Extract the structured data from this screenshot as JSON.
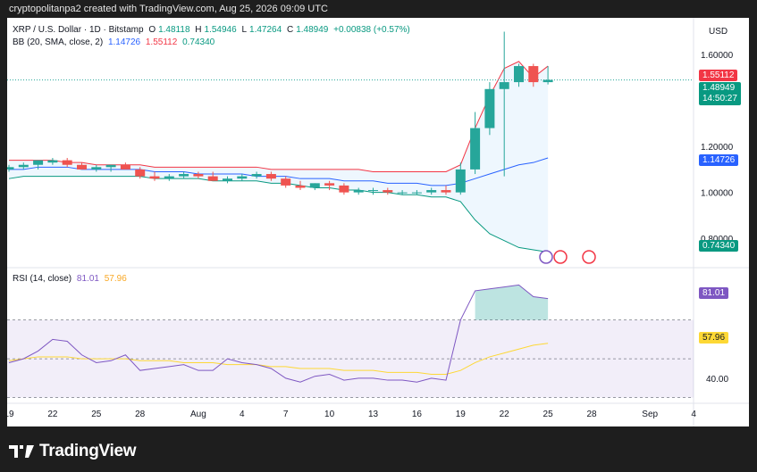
{
  "header": {
    "text": "cryptopolitanpa2 created with TradingView.com, Aug 25, 2026 09:09 UTC"
  },
  "legend": {
    "symbol": "XRP / U.S. Dollar · 1D · Bitstamp",
    "o_label": "O",
    "o_value": "1.48118",
    "h_label": "H",
    "h_value": "1.54946",
    "l_label": "L",
    "l_value": "1.47264",
    "c_label": "C",
    "c_value": "1.48949",
    "change": "+0.00838 (+0.57%)",
    "bb_label": "BB (20, SMA, close, 2)",
    "bb_basis": "1.14726",
    "bb_upper": "1.55112",
    "bb_lower": "0.74340",
    "rsi_label": "RSI (14, close)",
    "rsi_value": "81.01",
    "rsi_ma_value": "57.96"
  },
  "price_axis": {
    "currency": "USD",
    "current_price": "1.48949",
    "countdown": "14:50:27",
    "upper_band_label": "1.55112",
    "basis_label": "1.14726",
    "lower_band_label": "0.74340"
  },
  "rsi_axis": {
    "rsi_label": "81.01",
    "ma_label": "57.96"
  },
  "colors": {
    "up": "#26a69a",
    "down": "#ef5350",
    "upper_band": "#f23645",
    "basis": "#2962ff",
    "lower_band": "#089981",
    "rsi": "#7e57c2",
    "rsi_ma": "#fdd835"
  },
  "footer": {
    "brand": "TradingView"
  },
  "chart_data": [
    {
      "type": "candlestick",
      "title": "XRP / U.S. Dollar · 1D · Bitstamp",
      "x": [
        "Jul 19",
        "Jul 20",
        "Jul 21",
        "Jul 22",
        "Jul 23",
        "Jul 24",
        "Jul 25",
        "Jul 26",
        "Jul 27",
        "Jul 28",
        "Jul 29",
        "Jul 30",
        "Jul 31",
        "Aug 1",
        "Aug 2",
        "Aug 3",
        "Aug 4",
        "Aug 5",
        "Aug 6",
        "Aug 7",
        "Aug 8",
        "Aug 9",
        "Aug 10",
        "Aug 11",
        "Aug 12",
        "Aug 13",
        "Aug 14",
        "Aug 15",
        "Aug 16",
        "Aug 17",
        "Aug 18",
        "Aug 19",
        "Aug 20",
        "Aug 21",
        "Aug 22",
        "Aug 23",
        "Aug 24",
        "Aug 25"
      ],
      "open": [
        1.1,
        1.11,
        1.12,
        1.13,
        1.14,
        1.12,
        1.1,
        1.11,
        1.12,
        1.1,
        1.07,
        1.06,
        1.07,
        1.08,
        1.07,
        1.05,
        1.06,
        1.07,
        1.08,
        1.06,
        1.03,
        1.02,
        1.04,
        1.03,
        1.0,
        1.01,
        1.01,
        1.0,
        1.0,
        1.0,
        1.01,
        1.0,
        1.1,
        1.28,
        1.45,
        1.48,
        1.55,
        1.48
      ],
      "high": [
        1.12,
        1.13,
        1.14,
        1.15,
        1.15,
        1.13,
        1.12,
        1.12,
        1.13,
        1.11,
        1.09,
        1.08,
        1.09,
        1.09,
        1.09,
        1.07,
        1.08,
        1.09,
        1.09,
        1.07,
        1.05,
        1.04,
        1.05,
        1.04,
        1.02,
        1.02,
        1.02,
        1.01,
        1.01,
        1.02,
        1.03,
        1.13,
        1.35,
        1.48,
        1.7,
        1.56,
        1.56,
        1.55
      ],
      "low": [
        1.09,
        1.1,
        1.1,
        1.12,
        1.11,
        1.1,
        1.09,
        1.09,
        1.1,
        1.06,
        1.05,
        1.05,
        1.06,
        1.06,
        1.05,
        1.04,
        1.05,
        1.06,
        1.05,
        1.02,
        1.01,
        1.01,
        1.01,
        0.99,
        0.99,
        0.99,
        0.99,
        0.99,
        0.99,
        0.99,
        0.99,
        0.99,
        1.08,
        1.25,
        1.07,
        1.46,
        1.46,
        1.47
      ],
      "close": [
        1.11,
        1.12,
        1.14,
        1.14,
        1.12,
        1.1,
        1.11,
        1.12,
        1.1,
        1.07,
        1.06,
        1.07,
        1.08,
        1.07,
        1.05,
        1.06,
        1.07,
        1.08,
        1.06,
        1.03,
        1.02,
        1.04,
        1.03,
        1.0,
        1.01,
        1.01,
        1.0,
        1.0,
        1.0,
        1.01,
        1.0,
        1.1,
        1.28,
        1.45,
        1.48,
        1.55,
        1.48,
        1.49
      ],
      "bb_upper": [
        1.14,
        1.14,
        1.14,
        1.14,
        1.13,
        1.13,
        1.12,
        1.12,
        1.12,
        1.12,
        1.11,
        1.11,
        1.11,
        1.11,
        1.11,
        1.11,
        1.11,
        1.11,
        1.1,
        1.1,
        1.1,
        1.1,
        1.1,
        1.1,
        1.1,
        1.09,
        1.09,
        1.09,
        1.09,
        1.09,
        1.09,
        1.12,
        1.28,
        1.42,
        1.54,
        1.57,
        1.5,
        1.55
      ],
      "bb_basis": [
        1.1,
        1.1,
        1.11,
        1.11,
        1.11,
        1.1,
        1.1,
        1.1,
        1.1,
        1.1,
        1.09,
        1.09,
        1.09,
        1.08,
        1.08,
        1.08,
        1.08,
        1.07,
        1.07,
        1.07,
        1.06,
        1.06,
        1.06,
        1.05,
        1.05,
        1.05,
        1.04,
        1.04,
        1.04,
        1.03,
        1.03,
        1.04,
        1.06,
        1.08,
        1.1,
        1.12,
        1.13,
        1.15
      ],
      "bb_lower": [
        1.06,
        1.07,
        1.07,
        1.07,
        1.07,
        1.07,
        1.07,
        1.07,
        1.07,
        1.07,
        1.06,
        1.06,
        1.06,
        1.06,
        1.05,
        1.05,
        1.05,
        1.05,
        1.04,
        1.04,
        1.03,
        1.02,
        1.02,
        1.01,
        1.01,
        1.0,
        1.0,
        0.99,
        0.99,
        0.98,
        0.98,
        0.96,
        0.88,
        0.82,
        0.79,
        0.76,
        0.75,
        0.74
      ],
      "ylim": [
        0.68,
        1.76
      ],
      "yticks": [
        "0.80000",
        "1.00000",
        "1.20000",
        "1.40000",
        "1.60000"
      ],
      "xticks": [
        "19",
        "22",
        "25",
        "28",
        "Aug",
        "4",
        "7",
        "10",
        "13",
        "16",
        "19",
        "22",
        "25",
        "28",
        "Sep",
        "4"
      ]
    },
    {
      "type": "line",
      "title": "RSI (14, close)",
      "series": [
        {
          "name": "RSI",
          "values": [
            48,
            50,
            54,
            60,
            59,
            52,
            48,
            49,
            52,
            44,
            45,
            46,
            47,
            44,
            44,
            50,
            48,
            47,
            45,
            40,
            38,
            41,
            42,
            39,
            40,
            40,
            39,
            39,
            38,
            40,
            39,
            70,
            85,
            86,
            87,
            88,
            82,
            81
          ]
        },
        {
          "name": "RSI-based MA",
          "values": [
            49,
            50,
            51,
            51,
            51,
            50,
            50,
            50,
            50,
            49,
            49,
            49,
            48,
            48,
            48,
            47,
            47,
            47,
            46,
            46,
            45,
            45,
            45,
            44,
            44,
            44,
            43,
            43,
            43,
            42,
            42,
            44,
            48,
            51,
            53,
            55,
            57,
            58
          ]
        }
      ],
      "ylim": [
        28,
        96
      ],
      "yticks": [
        "40.00"
      ]
    }
  ]
}
